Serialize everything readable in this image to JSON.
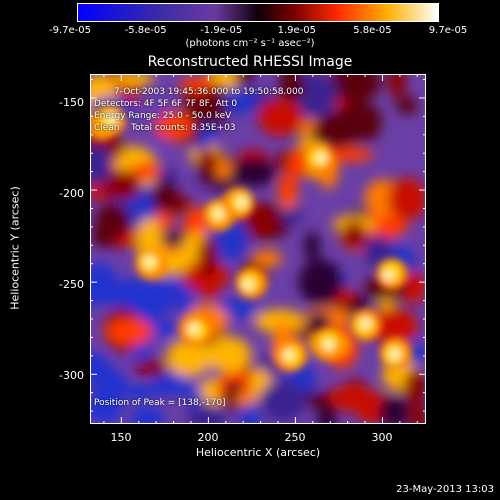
{
  "colorbar": {
    "ticks": [
      "-9.7e-05",
      "-5.8e-05",
      "-1.9e-05",
      "1.9e-05",
      "5.8e-05",
      "9.7e-05"
    ],
    "unit_label": "(photons cm⁻² s⁻¹ asec⁻²)"
  },
  "chart_data": {
    "type": "heatmap",
    "title": "Reconstructed RHESSI Image",
    "xlabel": "Heliocentric X (arcsec)",
    "ylabel": "Heliocentric Y (arcsec)",
    "xlim": [
      132,
      325
    ],
    "ylim": [
      -327,
      -137
    ],
    "x_ticks": [
      "150",
      "200",
      "250",
      "300"
    ],
    "y_ticks": [
      "-150",
      "-200",
      "-250",
      "-300"
    ],
    "colormap": "hessi",
    "value_range": [
      -9.7e-05,
      9.7e-05
    ],
    "peak": [
      138,
      -170
    ],
    "annotations": {
      "time_range": "7-Oct-2003 19:45:36.000 to 19:50:58.000",
      "detectors": "Detectors: 4F 5F 6F 7F 8F, Att 0",
      "energy": "Energy Range: 25.0 - 50.0 keV",
      "clean": "Clean    Total counts: 8.35E+03",
      "peak_text": "Position of Peak = [138,-170]"
    }
  },
  "footer": {
    "date": "23-May-2013 13:03"
  }
}
